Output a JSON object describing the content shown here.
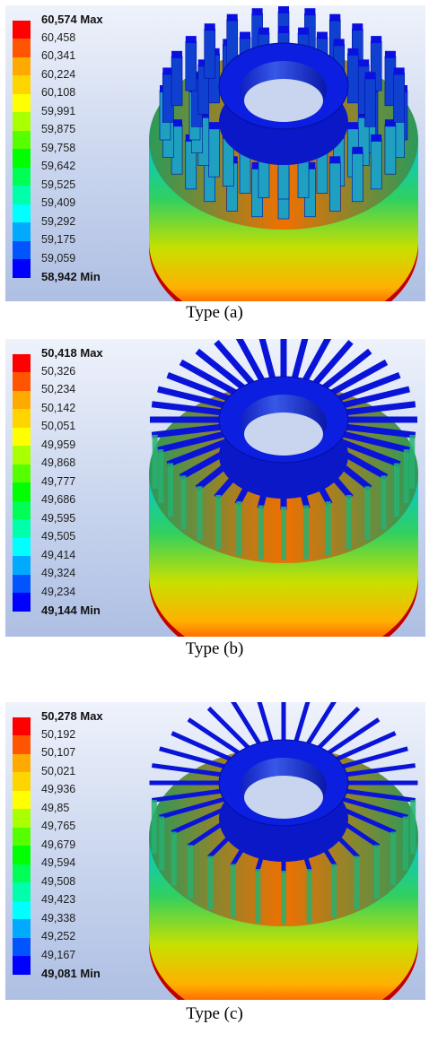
{
  "legend_colors": [
    "#ff0000",
    "#ff5500",
    "#ffaa00",
    "#ffd500",
    "#ffff00",
    "#aaff00",
    "#55ff00",
    "#00ff00",
    "#00ff55",
    "#00ffaa",
    "#00ffff",
    "#00aaff",
    "#0055ff",
    "#0000ff"
  ],
  "panels": [
    {
      "id": "a",
      "fin_type": "pins",
      "legend": [
        "60,574 Max",
        "60,458",
        "60,341",
        "60,224",
        "60,108",
        "59,991",
        "59,875",
        "59,758",
        "59,642",
        "59,525",
        "59,409",
        "59,292",
        "59,175",
        "59,059",
        "58,942 Min"
      ],
      "caption": "Type  (a)"
    },
    {
      "id": "b",
      "fin_type": "radial",
      "legend": [
        "50,418 Max",
        "50,326",
        "50,234",
        "50,142",
        "50,051",
        "49,959",
        "49,868",
        "49,777",
        "49,686",
        "49,595",
        "49,505",
        "49,414",
        "49,324",
        "49,234",
        "49,144 Min"
      ],
      "caption": "Type  (b)"
    },
    {
      "id": "c",
      "fin_type": "branched",
      "legend": [
        "50,278 Max",
        "50,192",
        "50,107",
        "50,021",
        "49,936",
        "49,85",
        "49,765",
        "49,679",
        "49,594",
        "49,508",
        "49,423",
        "49,338",
        "49,252",
        "49,167",
        "49,081 Min"
      ],
      "caption": "Type  (c)"
    }
  ]
}
